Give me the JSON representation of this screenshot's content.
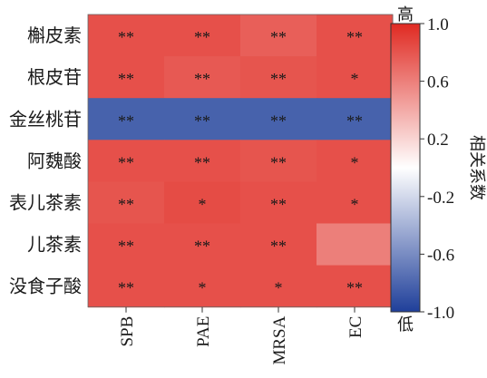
{
  "chart_data": {
    "type": "heatmap",
    "rows": [
      "槲皮素",
      "根皮苷",
      "金丝桃苷",
      "阿魏酸",
      "表儿茶素",
      "儿茶素",
      "没食子酸"
    ],
    "columns": [
      "SPB",
      "PAE",
      "MRSA",
      "EC"
    ],
    "values": [
      [
        0.82,
        0.82,
        0.75,
        0.82
      ],
      [
        0.82,
        0.78,
        0.8,
        0.82
      ],
      [
        -0.82,
        -0.82,
        -0.82,
        -0.82
      ],
      [
        0.82,
        0.82,
        0.8,
        0.82
      ],
      [
        0.8,
        0.84,
        0.82,
        0.82
      ],
      [
        0.82,
        0.82,
        0.82,
        0.6
      ],
      [
        0.82,
        0.82,
        0.82,
        0.82
      ]
    ],
    "annotations": [
      [
        "**",
        "**",
        "**",
        "**"
      ],
      [
        "**",
        "**",
        "**",
        "*"
      ],
      [
        "**",
        "**",
        "**",
        "**"
      ],
      [
        "**",
        "**",
        "**",
        "*"
      ],
      [
        "**",
        "*",
        "**",
        "*"
      ],
      [
        "**",
        "**",
        "**",
        ""
      ],
      [
        "**",
        "*",
        "*",
        "**"
      ]
    ],
    "colorbar": {
      "min": -1.0,
      "max": 1.0,
      "ticks": [
        "1.0",
        "0.6",
        "0.2",
        "-0.2",
        "-0.6",
        "-1.0"
      ],
      "label": "相关系数",
      "high_label": "高",
      "low_label": "低",
      "colors": {
        "low": "#1f3f9a",
        "mid": "#ffffff",
        "high": "#e02a22"
      }
    }
  }
}
